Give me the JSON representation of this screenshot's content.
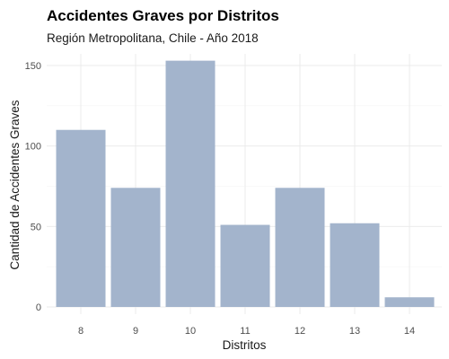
{
  "chart_data": {
    "type": "bar",
    "title": "Accidentes Graves por Distritos",
    "subtitle": "Región Metropolitana, Chile - Año 2018",
    "xlabel": "Distritos",
    "ylabel": "Cantidad de Accidentes Graves",
    "categories": [
      "8",
      "9",
      "10",
      "11",
      "12",
      "13",
      "14"
    ],
    "values": [
      110,
      74,
      153,
      51,
      74,
      52,
      6
    ],
    "ylim": [
      0,
      160
    ],
    "yticks": [
      0,
      50,
      100,
      150
    ],
    "grid": true,
    "bar_color": "#a3b4cc"
  }
}
